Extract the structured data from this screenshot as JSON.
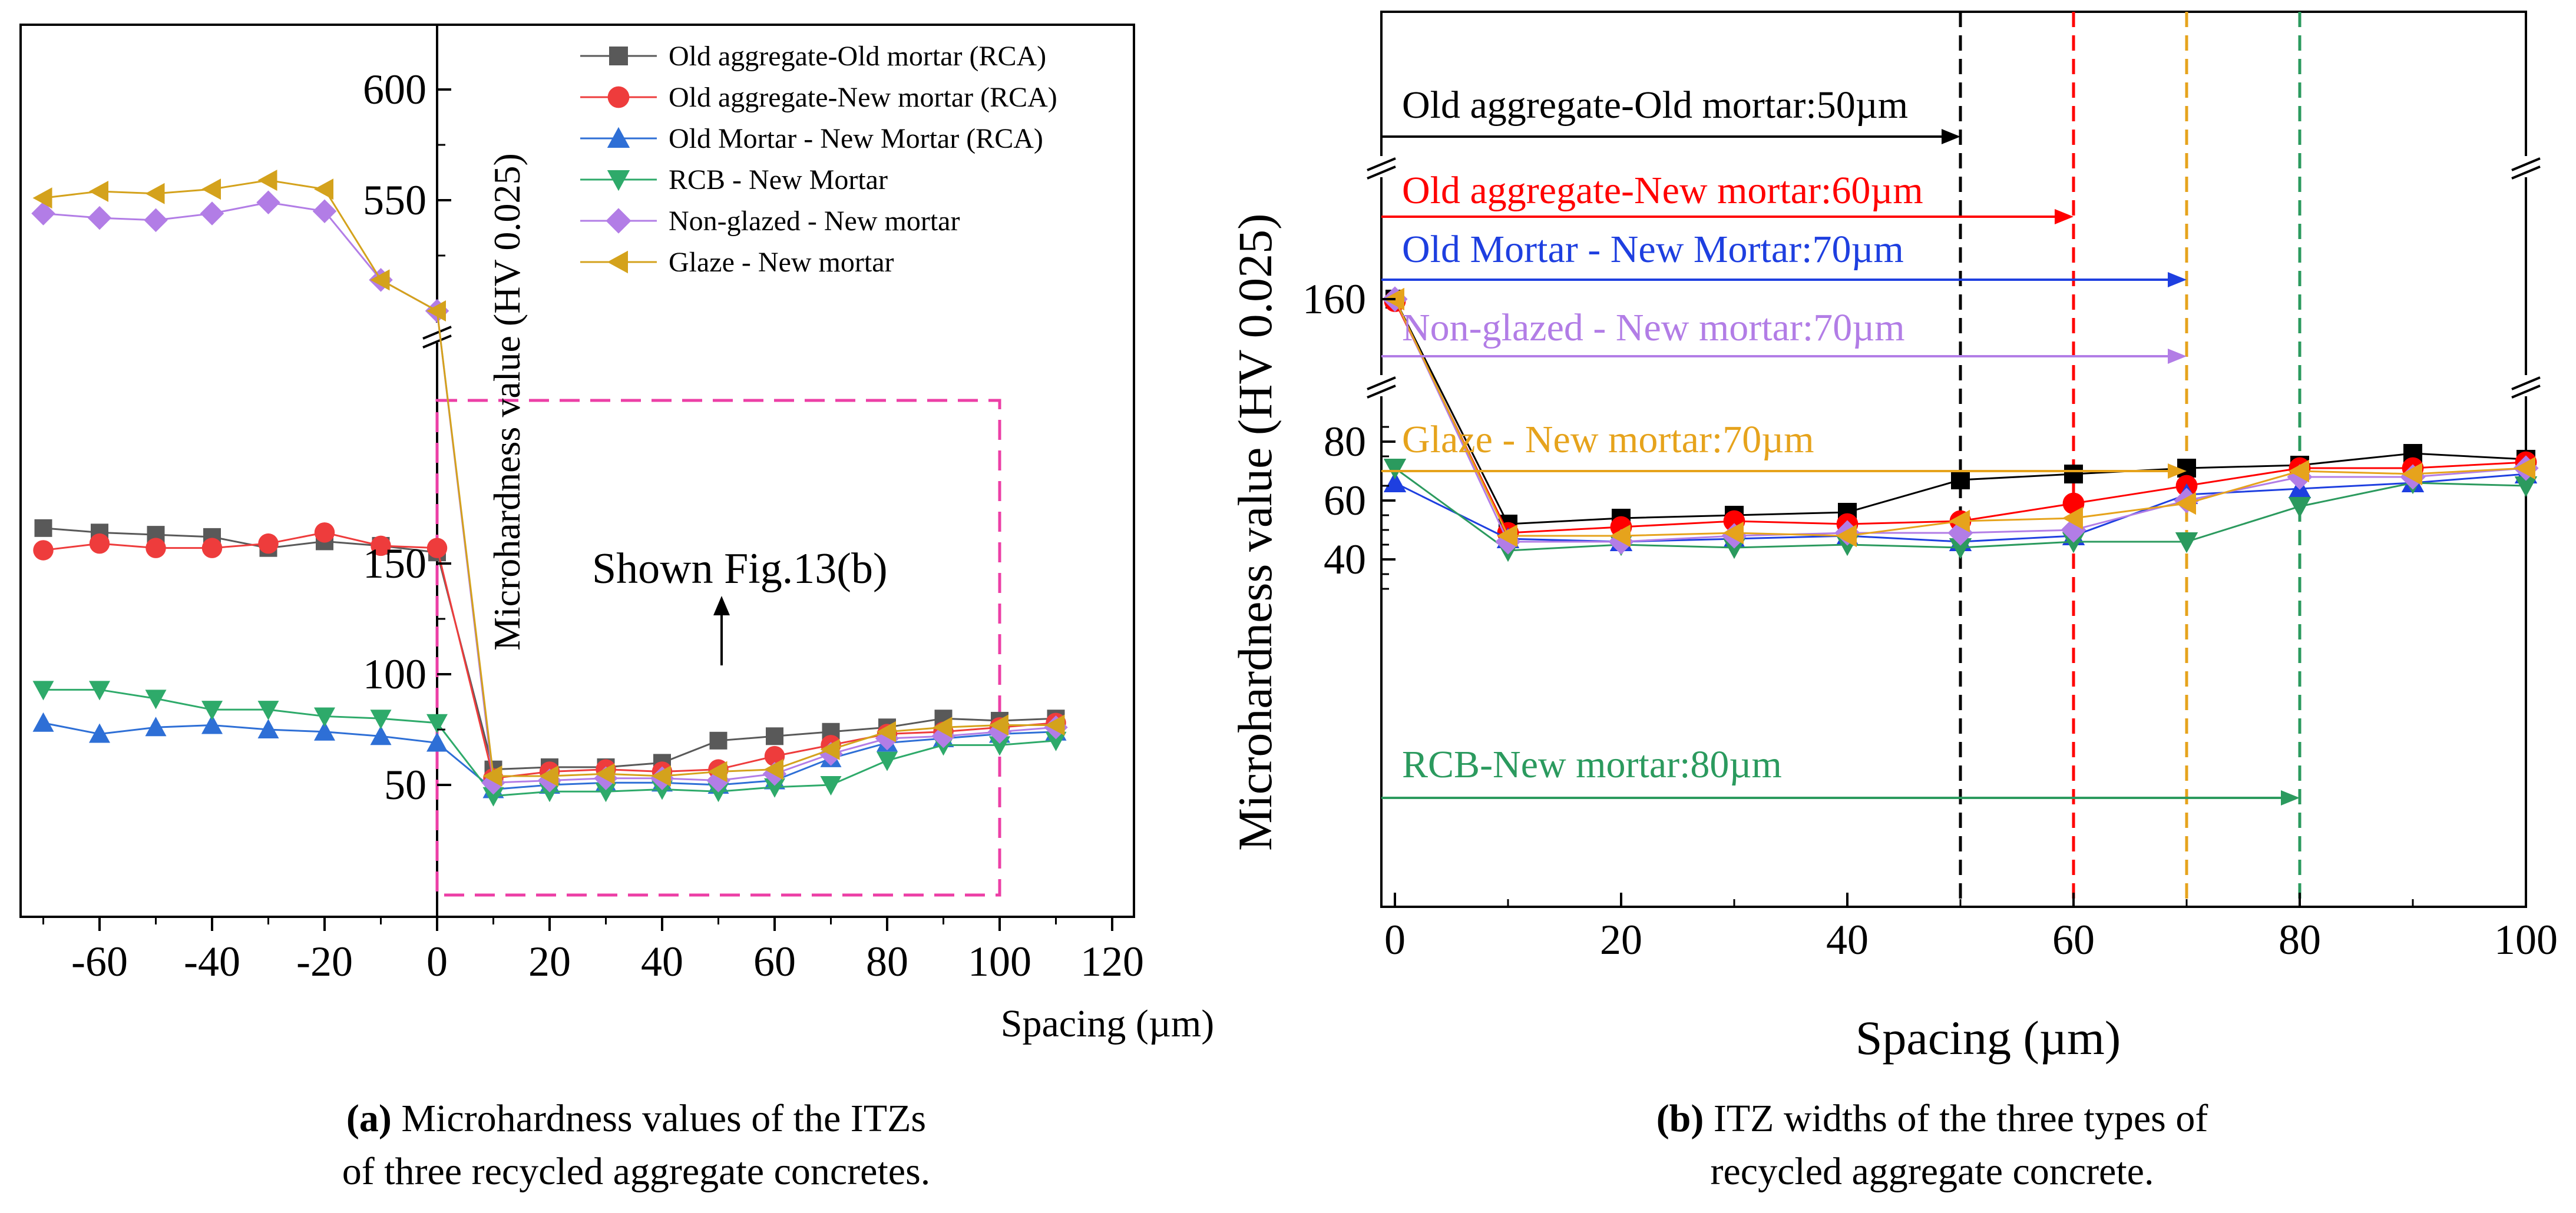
{
  "chart_data": [
    {
      "id": "a",
      "type": "line",
      "title": "",
      "xlabel": "Spacing (µm)",
      "ylabel": "Microhardness value (HV 0.025)",
      "xticks": [
        "-60",
        "-40",
        "-20",
        "0",
        "20",
        "40",
        "60",
        "80",
        "100",
        "120"
      ],
      "yticks": [
        "50",
        "100",
        "150",
        "550",
        "600"
      ],
      "axis_break": "between 170 and 500",
      "annotation": "Shown Fig.13(b)",
      "caption_label": "(a)",
      "caption_text_1": " Microhardness values of the ITZs",
      "caption_text_2": "of three recycled aggregate concretes.",
      "series": [
        {
          "name": "Old aggregate-Old mortar (RCA)",
          "color": "#595959",
          "marker": "square",
          "x": [
            -70,
            -60,
            -50,
            -40,
            -30,
            -20,
            -10,
            0,
            10,
            20,
            30,
            40,
            50,
            60,
            70,
            80,
            90,
            100,
            110
          ],
          "y": [
            166,
            164,
            163,
            162,
            157,
            160,
            158,
            155,
            57,
            58,
            58,
            60,
            70,
            72,
            74,
            76,
            80,
            79,
            80
          ]
        },
        {
          "name": "Old aggregate-New mortar (RCA)",
          "color": "#ee3c3c",
          "marker": "circle",
          "x": [
            -70,
            -60,
            -50,
            -40,
            -30,
            -20,
            -10,
            0,
            10,
            20,
            30,
            40,
            50,
            60,
            70,
            80,
            90,
            100,
            110
          ],
          "y": [
            156,
            159,
            157,
            157,
            159,
            164,
            158,
            157,
            53,
            56,
            57,
            56,
            57,
            63,
            68,
            73,
            74,
            76,
            78
          ]
        },
        {
          "name": "Old Mortar - New Mortar (RCA)",
          "color": "#2e6fd6",
          "marker": "triangle-up",
          "x": [
            -70,
            -60,
            -50,
            -40,
            -30,
            -20,
            -10,
            0,
            10,
            20,
            30,
            40,
            50,
            60,
            70,
            80,
            90,
            100,
            110
          ],
          "y": [
            78,
            73,
            76,
            77,
            75,
            74,
            72,
            69,
            48,
            50,
            51,
            51,
            50,
            52,
            62,
            69,
            71,
            73,
            74
          ]
        },
        {
          "name": "RCB - New Mortar",
          "color": "#2eaa6a",
          "marker": "triangle-down",
          "x": [
            -70,
            -60,
            -50,
            -40,
            -30,
            -20,
            -10,
            0,
            10,
            20,
            30,
            40,
            50,
            60,
            70,
            80,
            90,
            100,
            110
          ],
          "y": [
            93,
            93,
            89,
            84,
            84,
            81,
            80,
            78,
            45,
            47,
            47,
            48,
            47,
            49,
            50,
            61,
            68,
            68,
            70
          ]
        },
        {
          "name": "Non-glazed - New mortar",
          "color": "#b27de6",
          "marker": "diamond",
          "x": [
            -70,
            -60,
            -50,
            -40,
            -30,
            -20,
            -10,
            0,
            10,
            20,
            30,
            40,
            50,
            60,
            70,
            80,
            90,
            100,
            110
          ],
          "y": [
            544,
            542,
            541,
            544,
            549,
            545,
            514,
            500,
            51,
            52,
            53,
            53,
            52,
            55,
            64,
            71,
            72,
            74,
            76
          ]
        },
        {
          "name": "Glaze - New mortar",
          "color": "#d4a21c",
          "marker": "triangle-left",
          "x": [
            -70,
            -60,
            -50,
            -40,
            -30,
            -20,
            -10,
            0,
            10,
            20,
            30,
            40,
            50,
            60,
            70,
            80,
            90,
            100,
            110
          ],
          "y": [
            551,
            554,
            553,
            555,
            559,
            555,
            514,
            500,
            54,
            54,
            55,
            54,
            56,
            57,
            66,
            74,
            76,
            77,
            77
          ]
        }
      ]
    },
    {
      "id": "b",
      "type": "line",
      "title": "",
      "xlabel": "Spacing (µm)",
      "ylabel": "Microhardness value (HV 0.025)",
      "xticks": [
        "0",
        "20",
        "40",
        "60",
        "80",
        "100"
      ],
      "yticks": [
        "40",
        "60",
        "80",
        "160"
      ],
      "xlim": [
        0,
        100
      ],
      "axis_break": "between 86 and 150",
      "caption_label": "(b)",
      "caption_text_1": " ITZ widths of the three types of",
      "caption_text_2": "recycled aggregate concrete.",
      "series": [
        {
          "name": "Old aggregate-Old mortar",
          "color": "#000000",
          "marker": "square",
          "x": [
            0,
            10,
            20,
            30,
            40,
            50,
            60,
            70,
            80,
            90,
            100
          ],
          "y": [
            160,
            52,
            54,
            55,
            56,
            67,
            69,
            71,
            72,
            76,
            74
          ]
        },
        {
          "name": "Old aggregate-New mortar",
          "color": "#ff0000",
          "marker": "circle",
          "x": [
            0,
            10,
            20,
            30,
            40,
            50,
            60,
            70,
            80,
            90,
            100
          ],
          "y": [
            159,
            49,
            51,
            53,
            52,
            53,
            59,
            65,
            71,
            71,
            73
          ]
        },
        {
          "name": "Old Mortar - New Mortar",
          "color": "#1e3fe0",
          "marker": "triangle-up",
          "x": [
            0,
            10,
            20,
            30,
            40,
            50,
            60,
            70,
            80,
            90,
            100
          ],
          "y": [
            66,
            47,
            46,
            47,
            48,
            46,
            48,
            62,
            64,
            66,
            69
          ]
        },
        {
          "name": "RCB - New mortar",
          "color": "#2b9a5e",
          "marker": "triangle-down",
          "x": [
            0,
            10,
            20,
            30,
            40,
            50,
            60,
            70,
            80,
            90,
            100
          ],
          "y": [
            71,
            43,
            45,
            44,
            45,
            44,
            46,
            46,
            58,
            66,
            65
          ]
        },
        {
          "name": "Non-glazed - New mortar",
          "color": "#b27de6",
          "marker": "diamond",
          "x": [
            0,
            10,
            20,
            30,
            40,
            50,
            60,
            70,
            80,
            90,
            100
          ],
          "y": [
            160,
            46,
            46,
            48,
            49,
            49,
            50,
            60,
            68,
            68,
            71
          ]
        },
        {
          "name": "Glaze - New mortar",
          "color": "#e6a31c",
          "marker": "triangle-left",
          "x": [
            0,
            10,
            20,
            30,
            40,
            50,
            60,
            70,
            80,
            90,
            100
          ],
          "y": [
            160,
            48,
            48,
            49,
            48,
            53,
            54,
            59,
            70,
            69,
            71
          ]
        }
      ],
      "itz_markers": [
        {
          "label": "Old aggregate-Old mortar:50µm",
          "width": 50,
          "color": "#000000"
        },
        {
          "label": "Old aggregate-New mortar:60µm",
          "width": 60,
          "color": "#ff0000"
        },
        {
          "label": "Old Mortar - New Mortar:70µm",
          "width": 70,
          "color": "#1e3fe0"
        },
        {
          "label": "Non-glazed - New mortar:70µm",
          "width": 70,
          "color": "#b27de6"
        },
        {
          "label": "Glaze - New mortar:70µm",
          "width": 70,
          "color": "#e6a31c"
        },
        {
          "label": "RCB-New mortar:80µm",
          "width": 80,
          "color": "#2b9a5e"
        }
      ]
    }
  ]
}
